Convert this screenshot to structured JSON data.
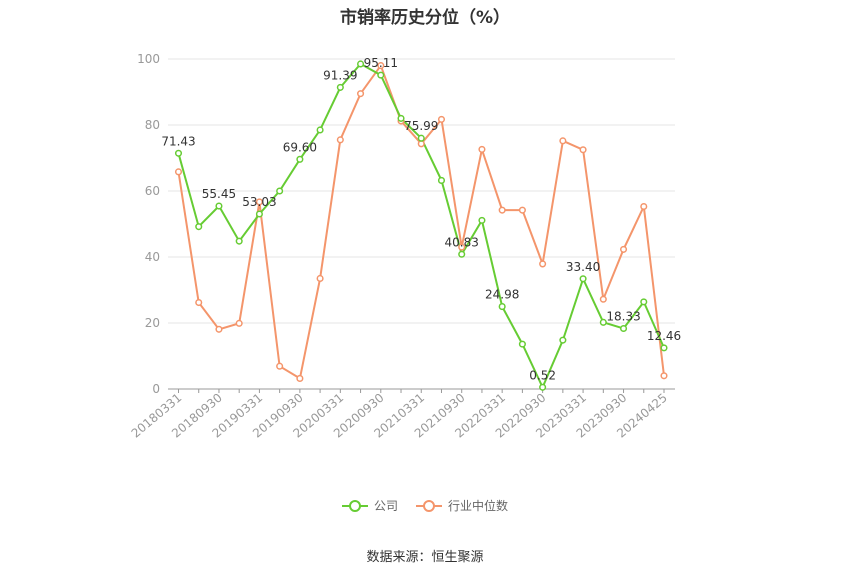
{
  "chart_data": {
    "type": "line",
    "title": "市销率历史分位（%）",
    "ylim": [
      0,
      100
    ],
    "yticks": [
      0,
      20,
      40,
      60,
      80,
      100
    ],
    "x": [
      "20180331",
      "20180630",
      "20180930",
      "20181231",
      "20190331",
      "20190630",
      "20190930",
      "20191231",
      "20200331",
      "20200630",
      "20200930",
      "20201231",
      "20210331",
      "20210630",
      "20210930",
      "20211231",
      "20220331",
      "20220630",
      "20220930",
      "20221231",
      "20230331",
      "20230630",
      "20230930",
      "20231231",
      "20240425"
    ],
    "xtick_labels": [
      "20180331",
      "20180930",
      "20190331",
      "20190930",
      "20200331",
      "20200930",
      "20210331",
      "20210930",
      "20220331",
      "20220930",
      "20230331",
      "20230930",
      "20240425"
    ],
    "series": [
      {
        "name": "公司",
        "color": "#66cc33",
        "values": [
          71.43,
          49.2,
          55.45,
          44.8,
          53.03,
          60.0,
          69.6,
          78.5,
          91.39,
          98.5,
          95.11,
          82.0,
          75.99,
          63.2,
          40.83,
          51.1,
          24.98,
          13.6,
          0.52,
          14.8,
          33.4,
          20.2,
          18.33,
          26.4,
          12.46
        ],
        "labels": {
          "0": "71.43",
          "2": "55.45",
          "4": "53.03",
          "6": "69.60",
          "8": "91.39",
          "10": "95.11",
          "12": "75.99",
          "14": "40.83",
          "16": "24.98",
          "18": "0.52",
          "20": "33.40",
          "22": "18.33",
          "24": "12.46"
        }
      },
      {
        "name": "行业中位数",
        "color": "#f4956b",
        "values": [
          65.8,
          26.2,
          18.1,
          19.9,
          56.7,
          6.9,
          3.2,
          33.5,
          75.5,
          89.5,
          98.0,
          81.2,
          74.3,
          81.7,
          43.0,
          72.6,
          54.2,
          54.2,
          37.9,
          75.2,
          72.5,
          27.2,
          42.3,
          55.3,
          4.0
        ]
      }
    ]
  },
  "legend": {
    "company": "公司",
    "industry": "行业中位数"
  },
  "source": "数据来源：恒生聚源"
}
